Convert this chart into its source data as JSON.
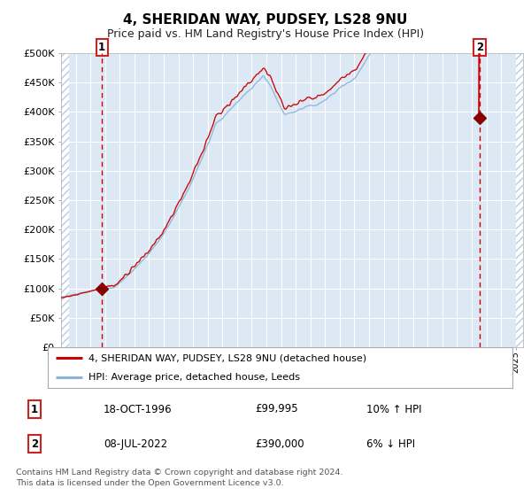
{
  "title": "4, SHERIDAN WAY, PUDSEY, LS28 9NU",
  "subtitle": "Price paid vs. HM Land Registry's House Price Index (HPI)",
  "title_fontsize": 11,
  "subtitle_fontsize": 9,
  "bg_color": "#dce9f5",
  "grid_color": "#ffffff",
  "red_line_color": "#cc0000",
  "blue_line_color": "#8ab4d8",
  "marker_color": "#880000",
  "vline_color": "#cc0000",
  "annotation_box_color": "#cc2222",
  "ylim": [
    0,
    500000
  ],
  "ytick_step": 50000,
  "sale1_date_x": 1996.79,
  "sale1_y": 99995,
  "sale1_label": "1",
  "sale1_text": "18-OCT-1996",
  "sale1_price": "£99,995",
  "sale1_hpi": "10% ↑ HPI",
  "sale2_date_x": 2022.54,
  "sale2_y": 390000,
  "sale2_label": "2",
  "sale2_text": "08-JUL-2022",
  "sale2_price": "£390,000",
  "sale2_hpi": "6% ↓ HPI",
  "legend_line1": "4, SHERIDAN WAY, PUDSEY, LS28 9NU (detached house)",
  "legend_line2": "HPI: Average price, detached house, Leeds",
  "footer_line1": "Contains HM Land Registry data © Crown copyright and database right 2024.",
  "footer_line2": "This data is licensed under the Open Government Licence v3.0.",
  "xmin": 1994.0,
  "xmax": 2025.5
}
